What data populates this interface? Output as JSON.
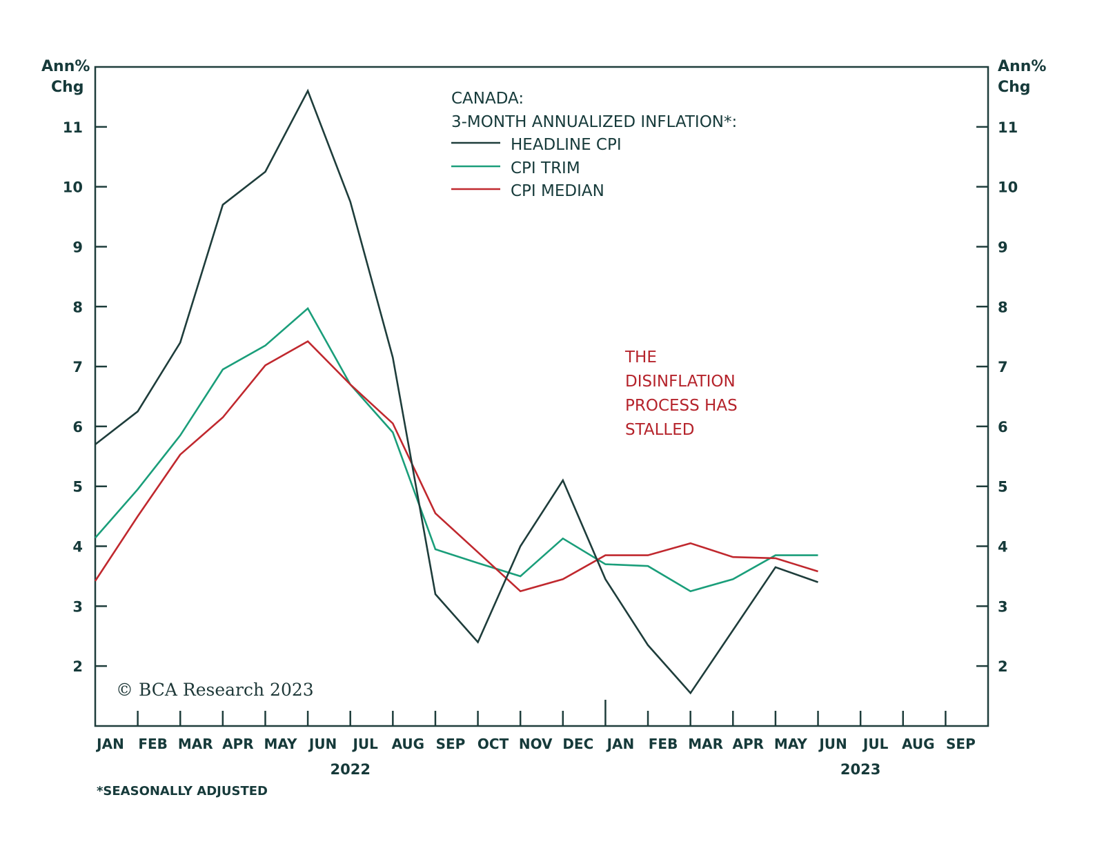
{
  "chart_data": {
    "type": "line",
    "title": "CANADA:",
    "subtitle": "3-MONTH ANNUALIZED INFLATION*:",
    "ylabel_left": [
      "Ann%",
      "Chg"
    ],
    "ylabel_right": [
      "Ann%",
      "Chg"
    ],
    "ylim": [
      1,
      12
    ],
    "yticks": [
      2,
      3,
      4,
      5,
      6,
      7,
      8,
      9,
      10,
      11
    ],
    "xlim_months": [
      "JAN 2022",
      "OCT 2023"
    ],
    "x_tick_labels": [
      "JAN",
      "FEB",
      "MAR",
      "APR",
      "MAY",
      "JUN",
      "JUL",
      "AUG",
      "SEP",
      "OCT",
      "NOV",
      "DEC",
      "JAN",
      "FEB",
      "MAR",
      "APR",
      "MAY",
      "JUN",
      "JUL",
      "AUG",
      "SEP"
    ],
    "year_labels": [
      {
        "label": "2022",
        "month_index": 6
      },
      {
        "label": "2023",
        "month_index": 18
      }
    ],
    "x": [
      "2022-01",
      "2022-02",
      "2022-03",
      "2022-04",
      "2022-05",
      "2022-06",
      "2022-07",
      "2022-08",
      "2022-09",
      "2022-10",
      "2022-11",
      "2022-12",
      "2023-01",
      "2023-02",
      "2023-03",
      "2023-04",
      "2023-05",
      "2023-06"
    ],
    "series": [
      {
        "name": "HEADLINE CPI",
        "color": "#1e3d3b",
        "values": [
          5.7,
          6.25,
          7.4,
          9.7,
          10.25,
          11.6,
          9.75,
          7.15,
          3.2,
          2.4,
          4.0,
          5.1,
          3.45,
          2.35,
          1.55,
          2.6,
          3.65,
          3.4
        ]
      },
      {
        "name": "CPI TRIM",
        "color": "#1a9e7a",
        "values": [
          4.14,
          4.95,
          5.85,
          6.95,
          7.35,
          7.97,
          6.7,
          5.9,
          3.95,
          3.72,
          3.5,
          4.13,
          3.7,
          3.67,
          3.25,
          3.45,
          3.85,
          3.85
        ]
      },
      {
        "name": "CPI MEDIAN",
        "color": "#c0282e",
        "values": [
          3.42,
          4.5,
          5.53,
          6.15,
          7.02,
          7.42,
          6.7,
          6.05,
          4.55,
          3.9,
          3.25,
          3.45,
          3.85,
          3.85,
          4.05,
          3.82,
          3.8,
          3.58
        ]
      }
    ],
    "annotation": [
      "THE",
      "DISINFLATION",
      "PROCESS HAS",
      "STALLED"
    ],
    "annotation_color": "#b5232b",
    "footnote": "*SEASONALLY ADJUSTED",
    "source": "© BCA Research 2023",
    "legend_placement": "top-center",
    "grid": false
  }
}
